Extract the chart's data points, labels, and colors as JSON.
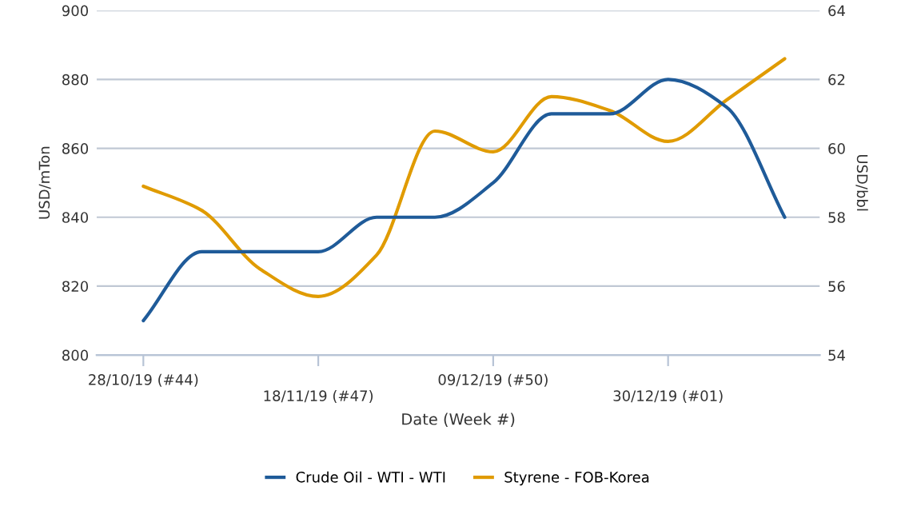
{
  "chart_data": {
    "type": "line",
    "xlabel": "Date (Week #)",
    "ylabel": "USD/mTon",
    "y2label": "USD/bbl",
    "categories": [
      "28/10/19 (#44)",
      null,
      null,
      "18/11/19 (#47)",
      null,
      null,
      "09/12/19 (#50)",
      null,
      null,
      "30/12/19 (#01)",
      null,
      null
    ],
    "series": [
      {
        "name": "Crude Oil - WTI - WTI",
        "color": "#1f5b99",
        "axis": "y2",
        "values": [
          55,
          57,
          57,
          57,
          58,
          58,
          59,
          61,
          61,
          62,
          61.2,
          58
        ]
      },
      {
        "name": "Styrene - FOB-Korea",
        "color": "#e09b00",
        "values": [
          849,
          842,
          825,
          817,
          829,
          865,
          859,
          875,
          871,
          862,
          874,
          886
        ]
      }
    ],
    "ylim": [
      800,
      900
    ],
    "yticks": [
      800,
      820,
      840,
      860,
      880,
      900
    ],
    "y2lim": [
      54,
      64
    ],
    "y2ticks": [
      54,
      56,
      58,
      60,
      62,
      64
    ],
    "grid": "y",
    "legend": "bottom",
    "marker": "none",
    "line_style": "solid"
  }
}
